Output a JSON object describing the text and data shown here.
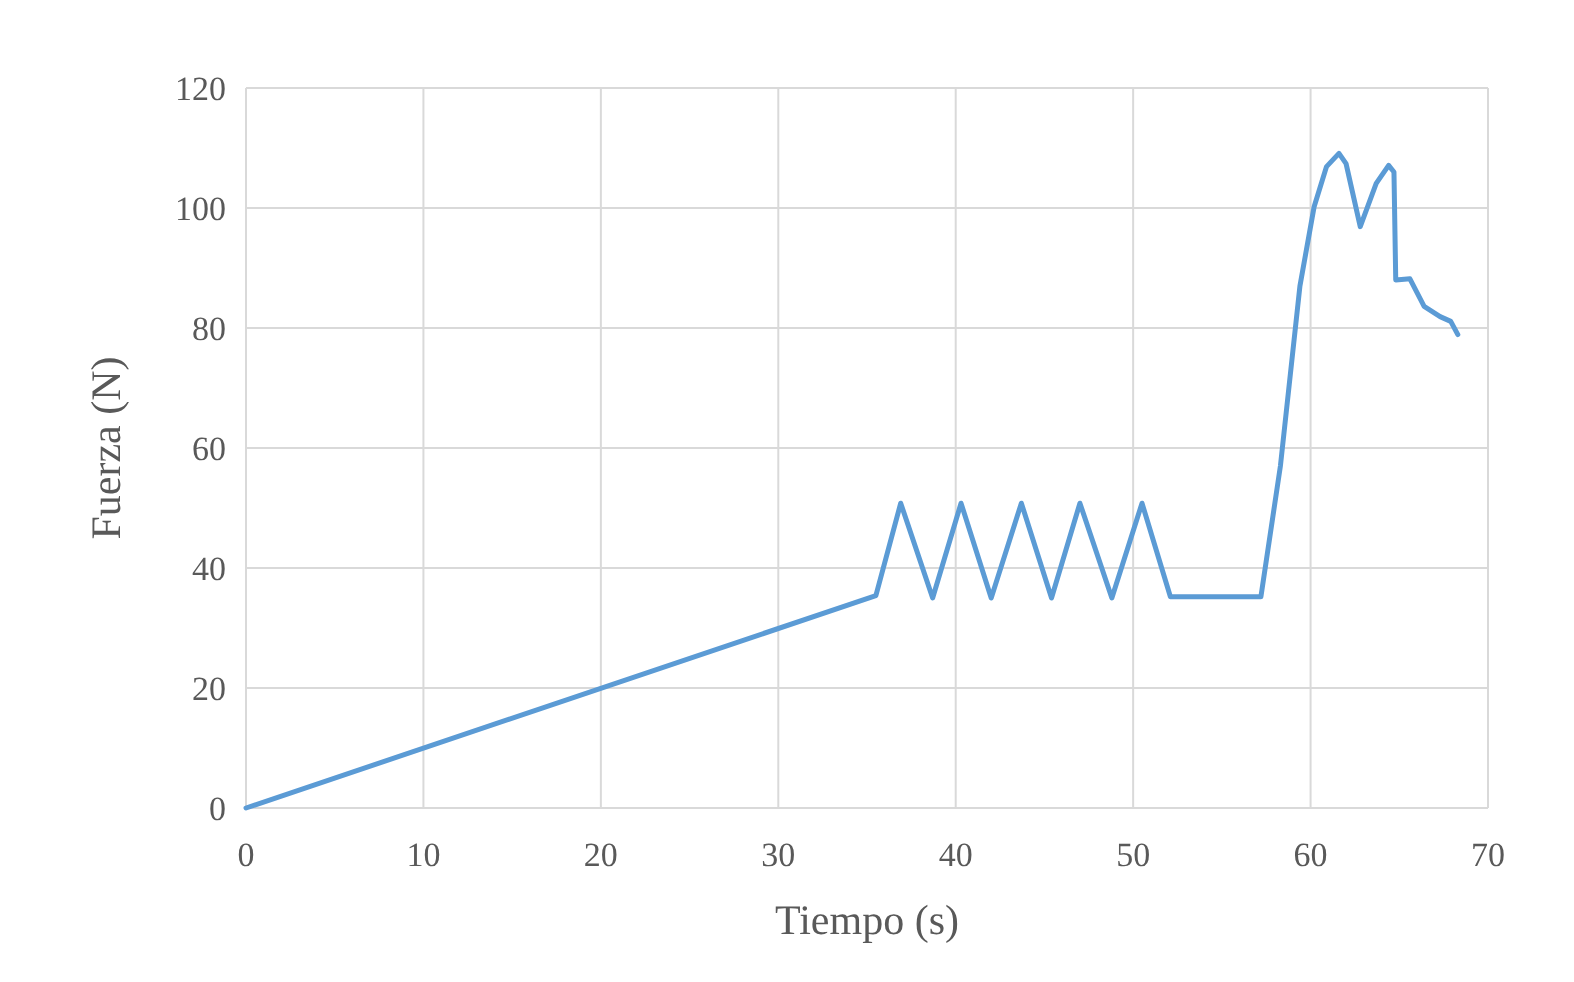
{
  "chart_data": {
    "type": "line",
    "xlabel": "Tiempo (s)",
    "ylabel": "Fuerza (N)",
    "xlim": [
      0,
      70
    ],
    "ylim": [
      0,
      120
    ],
    "xticks": [
      0,
      10,
      20,
      30,
      40,
      50,
      60,
      70
    ],
    "yticks": [
      0,
      20,
      40,
      60,
      80,
      100,
      120
    ],
    "grid": true,
    "marker": "none",
    "line_style": "solid",
    "series": [
      {
        "color": "#5b9bd5",
        "x": [
          0,
          35.5,
          36.9,
          38.7,
          40.3,
          42.0,
          43.7,
          45.4,
          47.0,
          48.8,
          50.5,
          52.1,
          57.2,
          58.3,
          59.4,
          60.2,
          60.9,
          61.6,
          62.0,
          62.8,
          63.7,
          64.4,
          64.7,
          64.8,
          65.6,
          66.4,
          67.3,
          67.9,
          68.3
        ],
        "values": [
          0,
          35.4,
          50.8,
          35,
          50.8,
          35,
          50.8,
          35,
          50.8,
          35,
          50.8,
          35.2,
          35.2,
          57,
          87,
          100.2,
          106.9,
          109.1,
          107.4,
          96.9,
          104.1,
          107.1,
          106,
          88,
          88.2,
          83.6,
          81.9,
          81.1,
          78.9
        ]
      }
    ]
  }
}
